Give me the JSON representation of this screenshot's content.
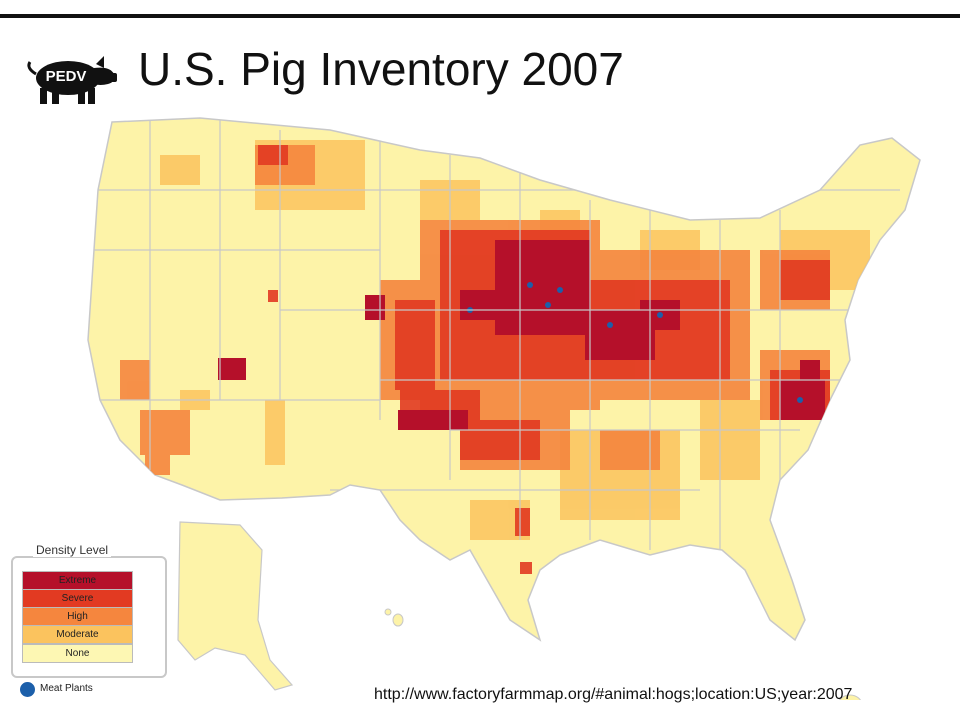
{
  "header": {
    "title": "U.S. Pig Inventory 2007",
    "logo_text": "PEDV"
  },
  "legend": {
    "title": "Density Level",
    "levels": [
      {
        "label": "Extreme",
        "color": "#b5102a"
      },
      {
        "label": "Severe",
        "color": "#e23a22"
      },
      {
        "label": "High",
        "color": "#f5863e"
      },
      {
        "label": "Moderate",
        "color": "#fbc35e"
      },
      {
        "label": "None",
        "color": "#fdf7b3"
      }
    ],
    "plants_label": "Meat Plants",
    "plants_color": "#1c5faa"
  },
  "source": "http://www.factoryfarmmap.org/#animal:hogs;location:US;year:2007",
  "colors": {
    "background": "#ffffff",
    "state_border": "#c8c8c8",
    "base_fill": "#fdf3a8"
  }
}
